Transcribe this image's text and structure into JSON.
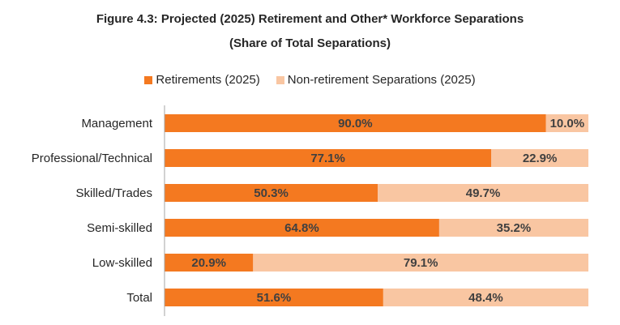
{
  "chart_data": {
    "type": "bar",
    "orientation": "horizontal",
    "stacked": true,
    "title": "Figure 4.3: Projected (2025) Retirement and Other* Workforce Separations",
    "subtitle": "(Share of Total Separations)",
    "categories": [
      "Management",
      "Professional/Technical",
      "Skilled/Trades",
      "Semi-skilled",
      "Low-skilled",
      "Total"
    ],
    "series": [
      {
        "name": "Retirements (2025)",
        "color": "#F47920",
        "values": [
          90.0,
          77.1,
          50.3,
          64.8,
          20.9,
          51.6
        ],
        "labels": [
          "90.0%",
          "77.1%",
          "50.3%",
          "64.8%",
          "20.9%",
          "51.6%"
        ]
      },
      {
        "name": "Non-retirement Separations (2025)",
        "color": "#F9C6A2",
        "values": [
          10.0,
          22.9,
          49.7,
          35.2,
          79.1,
          48.4
        ],
        "labels": [
          "10.0%",
          "22.9%",
          "49.7%",
          "35.2%",
          "79.1%",
          "48.4%"
        ]
      }
    ],
    "xlim": [
      0,
      100
    ],
    "grid": false,
    "legend": "top"
  }
}
